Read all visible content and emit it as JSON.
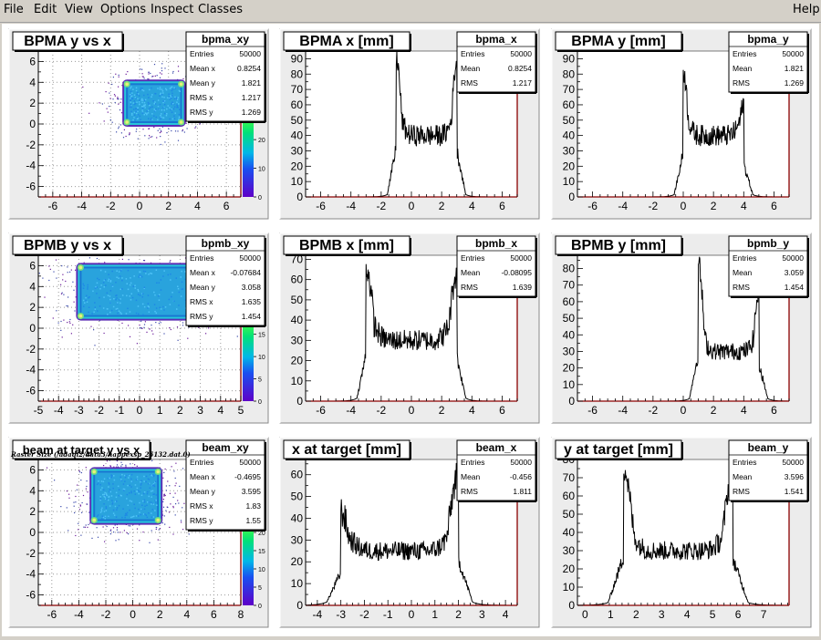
{
  "menubar": {
    "file": "File",
    "edit": "Edit",
    "view": "View",
    "options": "Options",
    "inspect": "Inspect",
    "classes": "Classes",
    "help": "Help"
  },
  "caption": "Raster Size (/adaql2/data3/happexsp_25132.dat.0)",
  "colors": {
    "axis": "#8b0000",
    "pad_bg": "#ececec",
    "title_bg": "#ffffff"
  },
  "chart_data": [
    {
      "type": "heatmap",
      "title": "BPMA y vs x",
      "stats_name": "bpma_xy",
      "stats": [
        [
          "Entries",
          "50000"
        ],
        [
          "Mean x",
          "0.8254"
        ],
        [
          "Mean y",
          "1.821"
        ],
        [
          "RMS x",
          "1.217"
        ],
        [
          "RMS y",
          "1.269"
        ]
      ],
      "xticks": [
        "-6",
        "-4",
        "-2",
        "0",
        "2",
        "4",
        "6"
      ],
      "yticks": [
        "-6",
        "-4",
        "-2",
        "0",
        "2",
        "4",
        "6"
      ],
      "xlim": [
        -7,
        7
      ],
      "ylim": [
        -7,
        7
      ],
      "rect": [
        -1,
        0,
        3,
        4
      ],
      "zticks": [
        "0",
        "10",
        "20"
      ],
      "zlim": [
        0,
        28
      ]
    },
    {
      "type": "histogram",
      "title": "BPMA x [mm]",
      "stats_name": "bpma_x",
      "stats": [
        [
          "Entries",
          "50000"
        ],
        [
          "Mean",
          "0.8254"
        ],
        [
          "RMS",
          "1.217"
        ]
      ],
      "xticks": [
        "-6",
        "-4",
        "-2",
        "0",
        "2",
        "4",
        "6"
      ],
      "yticks": [
        "0",
        "10",
        "20",
        "30",
        "40",
        "50",
        "60",
        "70",
        "80",
        "90"
      ],
      "xlim": [
        -7,
        7
      ],
      "ylim": [
        0,
        95
      ],
      "edges": [
        -1,
        3
      ],
      "peaks": [
        91,
        88
      ],
      "valley": 40
    },
    {
      "type": "histogram",
      "title": "BPMA y [mm]",
      "stats_name": "bpma_y",
      "stats": [
        [
          "Entries",
          "50000"
        ],
        [
          "Mean",
          "1.821"
        ],
        [
          "RMS",
          "1.269"
        ]
      ],
      "xticks": [
        "-6",
        "-4",
        "-2",
        "0",
        "2",
        "4",
        "6"
      ],
      "yticks": [
        "0",
        "10",
        "20",
        "30",
        "40",
        "50",
        "60",
        "70",
        "80",
        "90"
      ],
      "xlim": [
        -7,
        7
      ],
      "ylim": [
        0,
        95
      ],
      "edges": [
        0,
        4
      ],
      "peaks": [
        82,
        62
      ],
      "valley": 40
    },
    {
      "type": "heatmap",
      "title": "BPMB y vs x",
      "stats_name": "bpmb_xy",
      "stats": [
        [
          "Entries",
          "50000"
        ],
        [
          "Mean x",
          "-0.07684"
        ],
        [
          "Mean y",
          "3.058"
        ],
        [
          "RMS x",
          "1.635"
        ],
        [
          "RMS y",
          "1.454"
        ]
      ],
      "xticks": [
        "-5",
        "-4",
        "-3",
        "-2",
        "-1",
        "0",
        "1",
        "2",
        "3",
        "4",
        "5"
      ],
      "yticks": [
        "-6",
        "-4",
        "-2",
        "0",
        "2",
        "4",
        "6"
      ],
      "xlim": [
        -5,
        5
      ],
      "ylim": [
        -7,
        7
      ],
      "rect": [
        -3,
        1,
        3,
        6
      ],
      "zticks": [
        "0",
        "5",
        "10",
        "15"
      ],
      "zlim": [
        0,
        18
      ]
    },
    {
      "type": "histogram",
      "title": "BPMB x [mm]",
      "stats_name": "bpmb_x",
      "stats": [
        [
          "Entries",
          "50000"
        ],
        [
          "Mean",
          "-0.08095"
        ],
        [
          "RMS",
          "1.639"
        ]
      ],
      "xticks": [
        "-6",
        "-4",
        "-2",
        "0",
        "2",
        "4",
        "6"
      ],
      "yticks": [
        "0",
        "10",
        "20",
        "30",
        "40",
        "50",
        "60",
        "70"
      ],
      "xlim": [
        -7,
        7
      ],
      "ylim": [
        0,
        72
      ],
      "edges": [
        -3,
        3
      ],
      "peaks": [
        66,
        63
      ],
      "valley": 30
    },
    {
      "type": "histogram",
      "title": "BPMB y [mm]",
      "stats_name": "bpmb_y",
      "stats": [
        [
          "Entries",
          "50000"
        ],
        [
          "Mean",
          "3.059"
        ],
        [
          "RMS",
          "1.454"
        ]
      ],
      "xticks": [
        "-6",
        "-4",
        "-2",
        "0",
        "2",
        "4",
        "6"
      ],
      "yticks": [
        "0",
        "10",
        "20",
        "30",
        "40",
        "50",
        "60",
        "70",
        "80"
      ],
      "xlim": [
        -7,
        7
      ],
      "ylim": [
        0,
        88
      ],
      "edges": [
        1,
        5
      ],
      "peaks": [
        83,
        65
      ],
      "valley": 30
    },
    {
      "type": "heatmap",
      "title": "beam at target y vs x",
      "stats_name": "beam_xy",
      "stats": [
        [
          "Entries",
          "50000"
        ],
        [
          "Mean x",
          "-0.4695"
        ],
        [
          "Mean y",
          "3.595"
        ],
        [
          "RMS x",
          "1.83"
        ],
        [
          "RMS y",
          "1.55"
        ]
      ],
      "xticks": [
        "-6",
        "-4",
        "-2",
        "0",
        "2",
        "4",
        "6",
        "8"
      ],
      "yticks": [
        "-6",
        "-4",
        "-2",
        "0",
        "2",
        "4",
        "6"
      ],
      "xlim": [
        -7,
        8
      ],
      "ylim": [
        -7,
        7
      ],
      "rect": [
        -3,
        1,
        2,
        6
      ],
      "zticks": [
        "0",
        "5",
        "10",
        "15",
        "20"
      ],
      "zlim": [
        0,
        22
      ]
    },
    {
      "type": "histogram",
      "title": "x at target [mm]",
      "stats_name": "beam_x",
      "stats": [
        [
          "Entries",
          "50000"
        ],
        [
          "Mean",
          "-0.456"
        ],
        [
          "RMS",
          "1.811"
        ]
      ],
      "xticks": [
        "-4",
        "-3",
        "-2",
        "-1",
        "0",
        "1",
        "2",
        "3",
        "4"
      ],
      "yticks": [
        "0",
        "10",
        "20",
        "30",
        "40",
        "50",
        "60"
      ],
      "xlim": [
        -4.5,
        4.5
      ],
      "ylim": [
        0,
        67
      ],
      "edges": [
        -3,
        2
      ],
      "peaks": [
        43,
        60
      ],
      "valley": 25
    },
    {
      "type": "histogram",
      "title": "y at target [mm]",
      "stats_name": "beam_y",
      "stats": [
        [
          "Entries",
          "50000"
        ],
        [
          "Mean",
          "3.596"
        ],
        [
          "RMS",
          "1.541"
        ]
      ],
      "xticks": [
        "0",
        "1",
        "2",
        "3",
        "4",
        "5",
        "6",
        "7"
      ],
      "yticks": [
        "0",
        "10",
        "20",
        "30",
        "40",
        "50",
        "60",
        "70",
        "80"
      ],
      "xlim": [
        -0.3,
        8
      ],
      "ylim": [
        0,
        80
      ],
      "edges": [
        1.5,
        5.8
      ],
      "peaks": [
        75,
        73
      ],
      "valley": 30
    }
  ]
}
